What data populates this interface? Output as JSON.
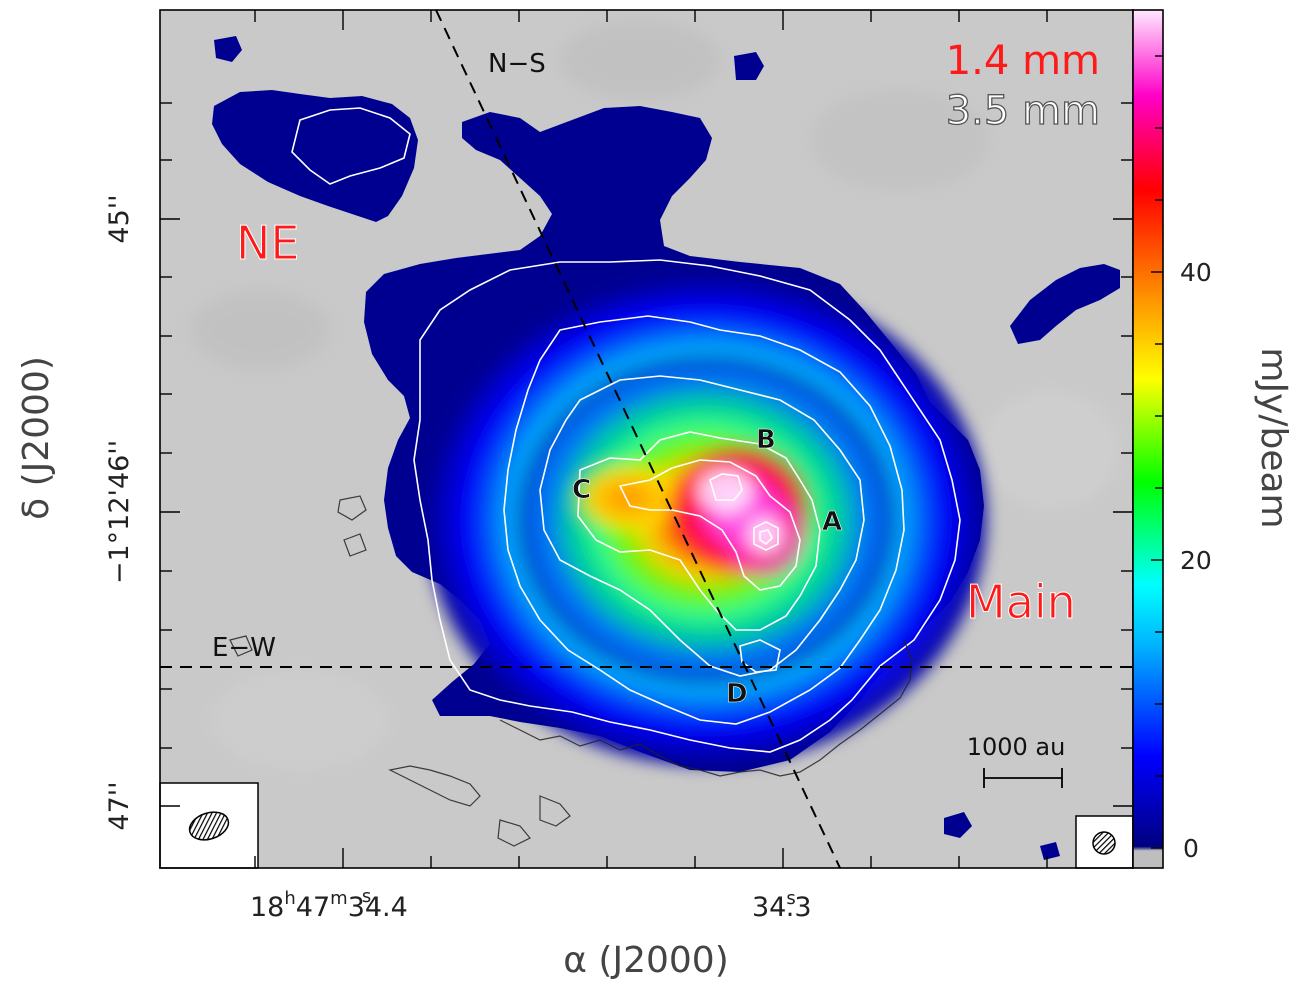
{
  "axes": {
    "x_title": "α (J2000)",
    "y_title": "δ (J2000)",
    "x_ticks": [
      {
        "label": "18",
        "sup1": "h",
        "mid": "47",
        "sup2": "m",
        "tail": "34.4",
        "sup3": "s"
      },
      {
        "label": "34",
        "sup1": "s",
        "tail": ".3"
      }
    ],
    "y_ticks": [
      "45''",
      "−1°12'46''",
      "47''"
    ]
  },
  "colorbar": {
    "title": "mJy/beam",
    "tick_labels": [
      "0",
      "20",
      "40"
    ],
    "colors": [
      "#bebebe",
      "#000080",
      "#0000ff",
      "#00b4ff",
      "#00ffff",
      "#00ff00",
      "#ffff00",
      "#ff8000",
      "#ff0000",
      "#ff00c8",
      "#ffe8ff"
    ]
  },
  "legend": {
    "line1": "1.4 mm",
    "line2": "3.5 mm"
  },
  "regions": {
    "ne": "NE",
    "main": "Main"
  },
  "cuts": {
    "ns": "N−S",
    "ew": "E−W"
  },
  "sources": {
    "a": "A",
    "b": "B",
    "c": "C",
    "d": "D"
  },
  "scalebar": {
    "label": "1000 au"
  }
}
